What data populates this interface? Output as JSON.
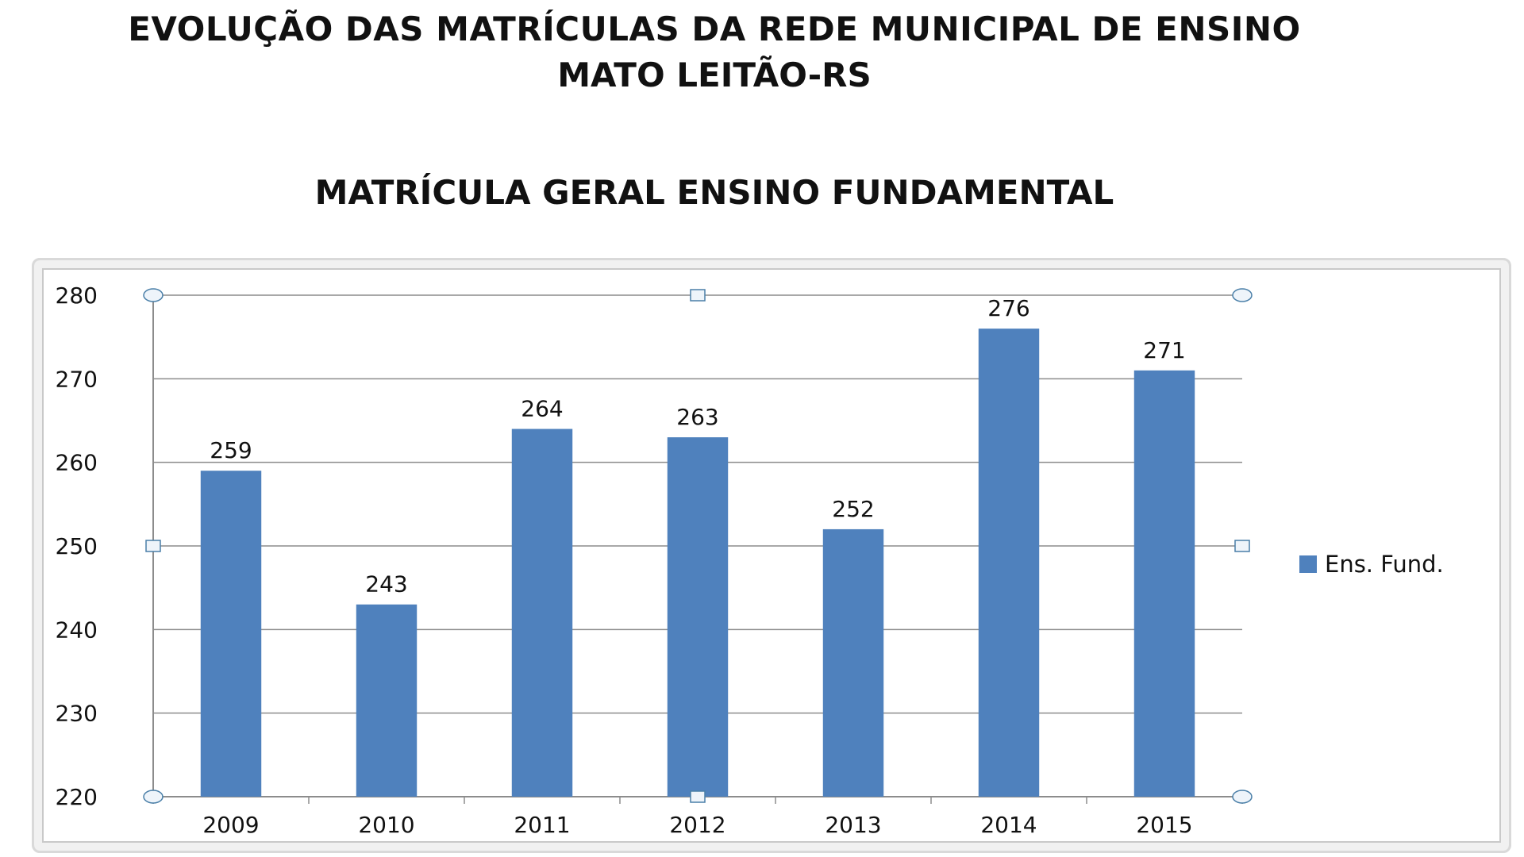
{
  "headings": {
    "line1": "EVOLUÇÃO DAS MATRÍCULAS DA REDE MUNICIPAL DE ENSINO",
    "line2": "MATO LEITÃO-RS",
    "chart_title": "MATRÍCULA GERAL ENSINO FUNDAMENTAL"
  },
  "colors": {
    "bar": "#4F81BD",
    "grid": "#8c8c8c",
    "handle": "#4a7fa8"
  },
  "chart_data": {
    "type": "bar",
    "title": "MATRÍCULA GERAL ENSINO FUNDAMENTAL",
    "categories": [
      "2009",
      "2010",
      "2011",
      "2012",
      "2013",
      "2014",
      "2015"
    ],
    "series": [
      {
        "name": "Ens. Fund.",
        "values": [
          259,
          243,
          264,
          263,
          252,
          276,
          271
        ]
      }
    ],
    "xlabel": "",
    "ylabel": "",
    "ylim": [
      220,
      280
    ],
    "yticks": [
      220,
      230,
      240,
      250,
      260,
      270,
      280
    ],
    "grid": true,
    "data_labels": true,
    "legend_position": "right"
  }
}
